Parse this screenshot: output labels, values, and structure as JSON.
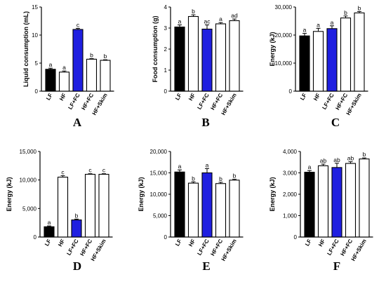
{
  "colors": {
    "LF": "#000000",
    "LF+FC": "#1f1fe0",
    "default": "#ffffff",
    "stroke": "#000000"
  },
  "chart_data": [
    {
      "type": "bar",
      "panel": "A",
      "ylabel": "Liquid consumption (mL)",
      "ylim": [
        0,
        15
      ],
      "yticks": [
        0,
        5,
        10,
        15
      ],
      "ytick_labels": [
        "0",
        "5",
        "10",
        "15"
      ],
      "categories": [
        "LF",
        "HF",
        "LF+FC",
        "HF+FC",
        "HF+Skim"
      ],
      "values": [
        3.9,
        3.4,
        11.0,
        5.7,
        5.5
      ],
      "errors": [
        0.2,
        0.2,
        0.2,
        0.1,
        0.1
      ],
      "letters": [
        "a",
        "a",
        "c",
        "b",
        "b"
      ]
    },
    {
      "type": "bar",
      "panel": "B",
      "ylabel": "Food consumption (g)",
      "ylim": [
        0,
        4
      ],
      "yticks": [
        0,
        1,
        2,
        3,
        4
      ],
      "ytick_labels": [
        "0",
        "1",
        "2",
        "3",
        "4"
      ],
      "categories": [
        "LF",
        "HF",
        "LF+FC",
        "HF+FC",
        "HF+Skim"
      ],
      "values": [
        3.05,
        3.55,
        2.95,
        3.2,
        3.35
      ],
      "errors": [
        0.1,
        0.08,
        0.2,
        0.06,
        0.08
      ],
      "letters": [
        "a",
        "b",
        "ac",
        "a",
        "ad"
      ]
    },
    {
      "type": "bar",
      "panel": "C",
      "ylabel": "Energy (kJ)",
      "ylim": [
        0,
        30000
      ],
      "yticks": [
        0,
        10000,
        20000,
        30000
      ],
      "ytick_labels": [
        "0",
        "10,000",
        "20,000",
        "30,000"
      ],
      "categories": [
        "LF",
        "HF",
        "LF+FC",
        "HF+FC",
        "HF+Skim"
      ],
      "values": [
        19700,
        21300,
        22300,
        26100,
        27900
      ],
      "errors": [
        900,
        1100,
        1000,
        700,
        500
      ],
      "letters": [
        "a",
        "a",
        "a",
        "b",
        "b"
      ]
    },
    {
      "type": "bar",
      "panel": "D",
      "ylabel": "Energy (kJ)",
      "ylim": [
        0,
        15000
      ],
      "yticks": [
        0,
        5000,
        10000,
        15000
      ],
      "ytick_labels": [
        "0",
        "5,000",
        "10,000",
        "15,000"
      ],
      "categories": [
        "LF",
        "HF",
        "LF+FC",
        "HF+FC",
        "HF+Skim"
      ],
      "values": [
        1800,
        10500,
        3000,
        11000,
        11000
      ],
      "errors": [
        150,
        250,
        150,
        100,
        100
      ],
      "letters": [
        "a",
        "c",
        "b",
        "c",
        "c"
      ]
    },
    {
      "type": "bar",
      "panel": "E",
      "ylabel": "Energy (kJ)",
      "ylim": [
        0,
        20000
      ],
      "yticks": [
        0,
        5000,
        10000,
        15000,
        20000
      ],
      "ytick_labels": [
        "0",
        "5,000",
        "10,000",
        "15,000",
        "20,000"
      ],
      "categories": [
        "LF",
        "HF",
        "LF+FC",
        "HF+FC",
        "HF+Skim"
      ],
      "values": [
        15200,
        12600,
        15000,
        12500,
        13300
      ],
      "errors": [
        500,
        300,
        1000,
        300,
        200
      ],
      "letters": [
        "a",
        "b",
        "a",
        "b",
        "b"
      ]
    },
    {
      "type": "bar",
      "panel": "F",
      "ylabel": "Energy (kJ)",
      "ylim": [
        0,
        4000
      ],
      "yticks": [
        0,
        1000,
        2000,
        3000,
        4000
      ],
      "ytick_labels": [
        "0",
        "1,000",
        "2,000",
        "3,000",
        "4,000"
      ],
      "categories": [
        "LF",
        "HF",
        "LF+FC",
        "HF+FC",
        "HF+Skim"
      ],
      "values": [
        3030,
        3330,
        3250,
        3440,
        3650
      ],
      "errors": [
        80,
        80,
        200,
        80,
        50
      ],
      "letters": [
        "a",
        "ab",
        "ab",
        "ab",
        "b"
      ]
    }
  ]
}
